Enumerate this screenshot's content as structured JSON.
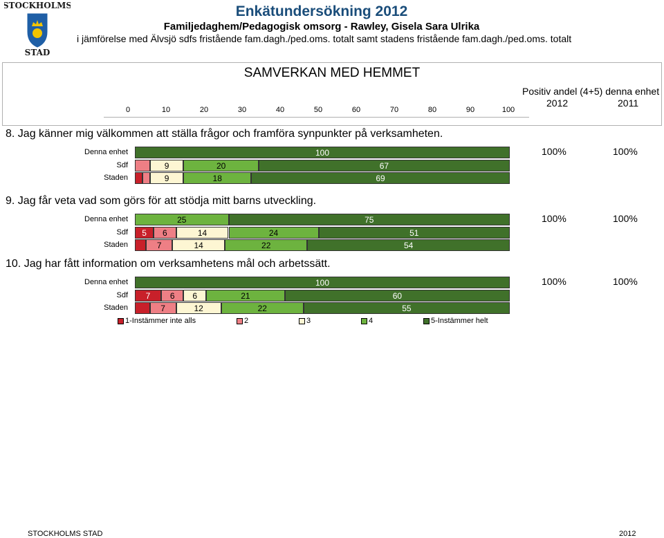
{
  "logo": {
    "text": "STOCKHOLMS STAD"
  },
  "header": {
    "title": "Enkätundersökning 2012",
    "subtitle": "Familjedaghem/Pedagogisk omsorg - Rawley, Gisela Sara Ulrika",
    "comparison": "i jämförelse med Älvsjö sdfs fristående fam.dagh./ped.oms. totalt samt stadens fristående fam.dagh./ped.oms. totalt"
  },
  "section": {
    "title": "SAMVERKAN MED HEMMET",
    "positive_header": "Positiv andel (4+5) denna enhet",
    "year_current": "2012",
    "year_previous": "2011",
    "axis_ticks": [
      "0",
      "10",
      "20",
      "30",
      "40",
      "50",
      "60",
      "70",
      "80",
      "90",
      "100"
    ]
  },
  "colors": {
    "s1": "#c8202a",
    "s2": "#ee7f85",
    "s3": "#fdf6d3",
    "s4": "#6db33f",
    "s5": "#40712a"
  },
  "chart_data": {
    "type": "bar",
    "orientation": "horizontal",
    "stacked": true,
    "xlim": [
      0,
      100
    ],
    "categories": [
      "Denna enhet",
      "Sdf",
      "Staden"
    ],
    "series_names": [
      "1-Instämmer inte alls",
      "2",
      "3",
      "4",
      "5-Instämmer helt"
    ],
    "questions": [
      {
        "title": "8. Jag känner mig välkommen att ställa frågor och framföra synpunkter på verksamheten.",
        "rows": [
          {
            "label": "Denna enhet",
            "values": [
              0,
              0,
              0,
              0,
              100
            ],
            "labels": [
              "",
              "",
              "",
              "",
              "100"
            ]
          },
          {
            "label": "Sdf",
            "values": [
              0,
              4,
              9,
              20,
              67
            ],
            "labels": [
              "",
              "",
              "9",
              "20",
              "67"
            ]
          },
          {
            "label": "Staden",
            "values": [
              2,
              2,
              9,
              18,
              69
            ],
            "labels": [
              "",
              "",
              "9",
              "18",
              "69"
            ]
          }
        ],
        "positive": {
          "current": "100%",
          "previous": "100%"
        }
      },
      {
        "title": "9. Jag får veta vad som görs för att stödja mitt barns utveckling.",
        "rows": [
          {
            "label": "Denna enhet",
            "values": [
              0,
              0,
              0,
              25,
              75
            ],
            "labels": [
              "",
              "",
              "",
              "25",
              "75"
            ]
          },
          {
            "label": "Sdf",
            "values": [
              5,
              6,
              14,
              24,
              51
            ],
            "labels": [
              "5",
              "6",
              "14",
              "24",
              "51"
            ]
          },
          {
            "label": "Staden",
            "values": [
              3,
              7,
              14,
              22,
              54
            ],
            "labels": [
              "",
              "7",
              "14",
              "22",
              "54"
            ]
          }
        ],
        "positive": {
          "current": "100%",
          "previous": "100%"
        }
      },
      {
        "title": "10. Jag har fått information om verksamhetens mål och arbetssätt.",
        "rows": [
          {
            "label": "Denna enhet",
            "values": [
              0,
              0,
              0,
              0,
              100
            ],
            "labels": [
              "",
              "",
              "",
              "",
              "100"
            ]
          },
          {
            "label": "Sdf",
            "values": [
              7,
              6,
              6,
              21,
              60
            ],
            "labels": [
              "7",
              "6",
              "6",
              "21",
              "60"
            ]
          },
          {
            "label": "Staden",
            "values": [
              4,
              7,
              12,
              22,
              55
            ],
            "labels": [
              "",
              "7",
              "12",
              "22",
              "55"
            ]
          }
        ],
        "positive": {
          "current": "100%",
          "previous": "100%"
        }
      }
    ]
  },
  "legend": [
    {
      "label": "1-Instämmer inte alls",
      "key": "s1"
    },
    {
      "label": "2",
      "key": "s2"
    },
    {
      "label": "3",
      "key": "s3"
    },
    {
      "label": "4",
      "key": "s4"
    },
    {
      "label": "5-Instämmer helt",
      "key": "s5"
    }
  ],
  "footer": {
    "left": "STOCKHOLMS STAD",
    "right": "2012"
  }
}
